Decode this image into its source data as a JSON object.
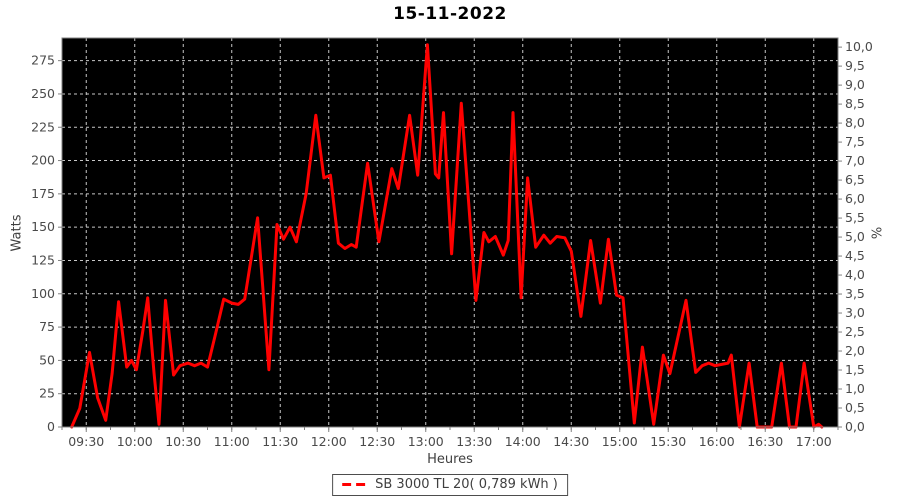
{
  "colors": {
    "page_bg": "#ffffff",
    "plot_bg": "#000000",
    "grid": "#c8c8c8",
    "axis": "#808080",
    "tick_label": "#4a4a4a",
    "title": "#000000",
    "series_red": "#ff0000",
    "legend_border": "#4d4d4d"
  },
  "chart_data": {
    "type": "line",
    "title": "15-11-2022",
    "xlabel": "Heures",
    "ylabel_left": "Watts",
    "ylabel_right": "%",
    "grid": "dashed",
    "legend_position": "bottom",
    "x_range": [
      "09:15",
      "17:15"
    ],
    "x_major_ticks": [
      "09:30",
      "10:00",
      "10:30",
      "11:00",
      "11:30",
      "12:00",
      "12:30",
      "13:00",
      "13:30",
      "14:00",
      "14:30",
      "15:00",
      "15:30",
      "16:00",
      "16:30",
      "17:00"
    ],
    "x_minor_step_min": 15,
    "ylim_left": [
      0,
      292
    ],
    "y_left_ticks": [
      0,
      25,
      50,
      75,
      100,
      125,
      150,
      175,
      200,
      225,
      250,
      275
    ],
    "ylim_right": [
      0,
      10.24
    ],
    "y_right_ticks": [
      0,
      0.5,
      1,
      1.5,
      2,
      2.5,
      3,
      3.5,
      4,
      4.5,
      5,
      5.5,
      6,
      6.5,
      7,
      7.5,
      8,
      8.5,
      9,
      9.5,
      10
    ],
    "y_right_tick_labels": [
      "0,0",
      "0,5",
      "1,0",
      "1,5",
      "2,0",
      "2,5",
      "3,0",
      "3,5",
      "4,0",
      "4,5",
      "5,0",
      "5,5",
      "6,0",
      "6,5",
      "7,0",
      "7,5",
      "8,0",
      "8,5",
      "9,0",
      "9,5",
      "10,0"
    ],
    "series": [
      {
        "name": "SB 3000 TL 20( 0,789 kWh )",
        "color": "#ff0000",
        "width": 3,
        "energy_kwh_label": "0,789 kWh",
        "points": [
          [
            "09:21",
            0
          ],
          [
            "09:26",
            14
          ],
          [
            "09:32",
            56
          ],
          [
            "09:37",
            22
          ],
          [
            "09:42",
            5
          ],
          [
            "09:46",
            40
          ],
          [
            "09:50",
            94
          ],
          [
            "09:55",
            45
          ],
          [
            "09:58",
            50
          ],
          [
            "10:01",
            43
          ],
          [
            "10:05",
            72
          ],
          [
            "10:08",
            97
          ],
          [
            "10:12",
            40
          ],
          [
            "10:15",
            2
          ],
          [
            "10:19",
            95
          ],
          [
            "10:24",
            39
          ],
          [
            "10:28",
            46
          ],
          [
            "10:33",
            48
          ],
          [
            "10:37",
            46
          ],
          [
            "10:41",
            48
          ],
          [
            "10:45",
            45
          ],
          [
            "10:50",
            70
          ],
          [
            "10:55",
            96
          ],
          [
            "11:00",
            93
          ],
          [
            "11:04",
            92
          ],
          [
            "11:08",
            96
          ],
          [
            "11:16",
            157
          ],
          [
            "11:23",
            43
          ],
          [
            "11:28",
            152
          ],
          [
            "11:32",
            141
          ],
          [
            "11:36",
            150
          ],
          [
            "11:40",
            139
          ],
          [
            "11:46",
            175
          ],
          [
            "11:52",
            234
          ],
          [
            "11:57",
            187
          ],
          [
            "12:01",
            189
          ],
          [
            "12:06",
            138
          ],
          [
            "12:10",
            134
          ],
          [
            "12:14",
            137
          ],
          [
            "12:17",
            135
          ],
          [
            "12:24",
            198
          ],
          [
            "12:31",
            139
          ],
          [
            "12:39",
            194
          ],
          [
            "12:43",
            179
          ],
          [
            "12:50",
            234
          ],
          [
            "12:55",
            189
          ],
          [
            "13:01",
            287
          ],
          [
            "13:06",
            190
          ],
          [
            "13:08",
            187
          ],
          [
            "13:11",
            236
          ],
          [
            "13:16",
            130
          ],
          [
            "13:22",
            243
          ],
          [
            "13:31",
            95
          ],
          [
            "13:36",
            146
          ],
          [
            "13:39",
            139
          ],
          [
            "13:43",
            143
          ],
          [
            "13:48",
            129
          ],
          [
            "13:51",
            140
          ],
          [
            "13:54",
            236
          ],
          [
            "13:59",
            97
          ],
          [
            "14:03",
            187
          ],
          [
            "14:08",
            135
          ],
          [
            "14:13",
            144
          ],
          [
            "14:17",
            138
          ],
          [
            "14:21",
            143
          ],
          [
            "14:26",
            142
          ],
          [
            "14:30",
            132
          ],
          [
            "14:36",
            83
          ],
          [
            "14:42",
            140
          ],
          [
            "14:48",
            93
          ],
          [
            "14:53",
            141
          ],
          [
            "14:58",
            99
          ],
          [
            "15:02",
            97
          ],
          [
            "15:09",
            3
          ],
          [
            "15:14",
            60
          ],
          [
            "15:21",
            2
          ],
          [
            "15:27",
            54
          ],
          [
            "15:31",
            40
          ],
          [
            "15:41",
            95
          ],
          [
            "15:47",
            41
          ],
          [
            "15:51",
            46
          ],
          [
            "15:55",
            48
          ],
          [
            "15:59",
            46
          ],
          [
            "16:03",
            47
          ],
          [
            "16:07",
            48
          ],
          [
            "16:09",
            54
          ],
          [
            "16:14",
            0
          ],
          [
            "16:20",
            48
          ],
          [
            "16:25",
            0
          ],
          [
            "16:34",
            0
          ],
          [
            "16:40",
            48
          ],
          [
            "16:45",
            0
          ],
          [
            "16:49",
            0
          ],
          [
            "16:54",
            48
          ],
          [
            "17:00",
            0
          ],
          [
            "17:03",
            2
          ],
          [
            "17:05",
            0
          ]
        ]
      }
    ]
  }
}
